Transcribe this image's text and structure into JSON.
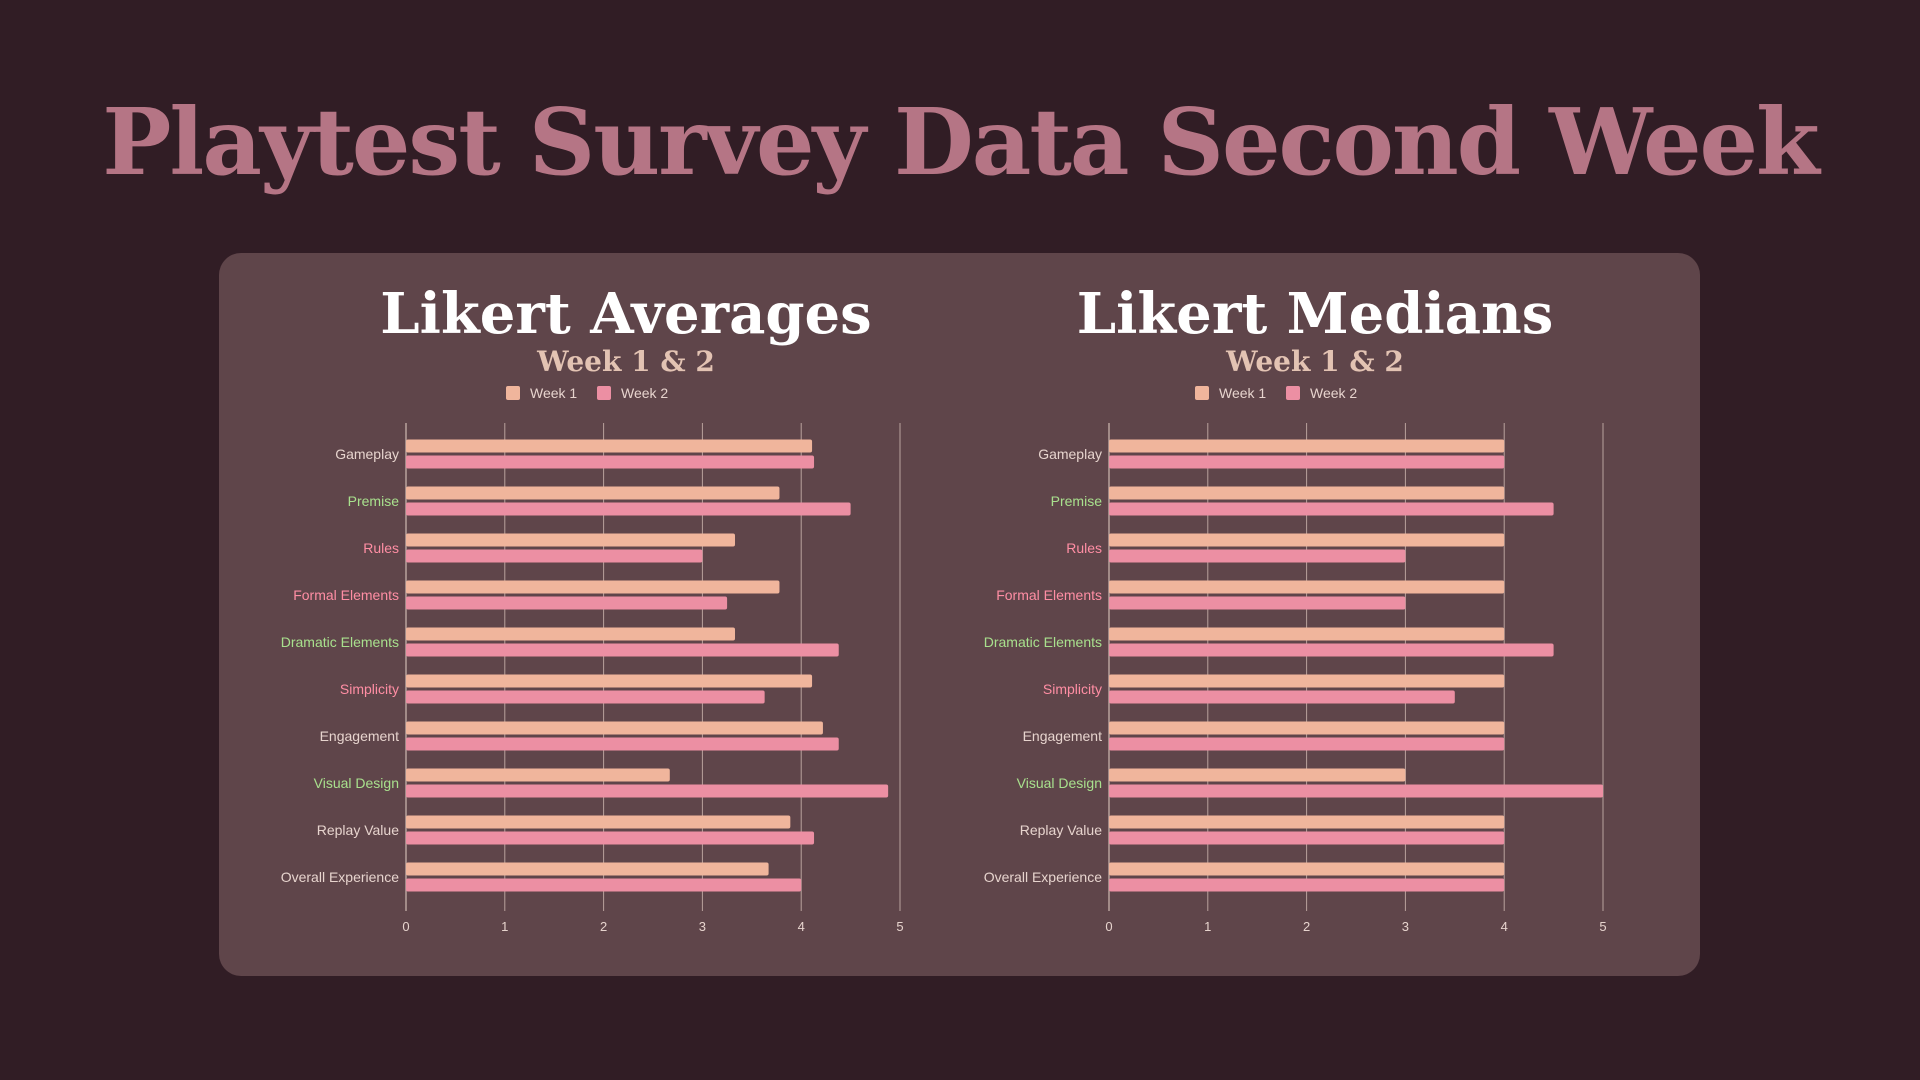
{
  "page": {
    "title": "Playtest Survey Data Second Week"
  },
  "colors": {
    "background": "#311d25",
    "panel": "#5f454a",
    "title": "#b57585",
    "week1": "#f0b59c",
    "week2": "#ec8fa3",
    "grid": "#c9b3ac",
    "label_default": "#e7d4ce",
    "label_green": "#a8e08d",
    "label_pink": "#ff8ea4"
  },
  "chart_data": [
    {
      "type": "bar",
      "orientation": "horizontal",
      "title": "Likert Averages",
      "subtitle": "Week 1 & 2",
      "categories": [
        "Gameplay",
        "Premise",
        "Rules",
        "Formal Elements",
        "Dramatic Elements",
        "Simplicity",
        "Engagement",
        "Visual Design",
        "Replay Value",
        "Overall Experience"
      ],
      "category_colors": [
        "default",
        "green",
        "pink",
        "pink",
        "green",
        "pink",
        "default",
        "green",
        "default",
        "default"
      ],
      "series": [
        {
          "name": "Week 1",
          "values": [
            4.11,
            3.78,
            3.33,
            3.78,
            3.33,
            4.11,
            4.22,
            2.67,
            3.89,
            3.67
          ]
        },
        {
          "name": "Week 2",
          "values": [
            4.13,
            4.5,
            3.0,
            3.25,
            4.38,
            3.63,
            4.38,
            4.88,
            4.13,
            4.0
          ]
        }
      ],
      "xlim": [
        0,
        5
      ],
      "xticks": [
        "0",
        "1",
        "2",
        "3",
        "4",
        "5"
      ],
      "grid": true,
      "legend": "top"
    },
    {
      "type": "bar",
      "orientation": "horizontal",
      "title": "Likert Medians",
      "subtitle": "Week 1 & 2",
      "categories": [
        "Gameplay",
        "Premise",
        "Rules",
        "Formal Elements",
        "Dramatic Elements",
        "Simplicity",
        "Engagement",
        "Visual Design",
        "Replay Value",
        "Overall Experience"
      ],
      "category_colors": [
        "default",
        "green",
        "pink",
        "pink",
        "green",
        "pink",
        "default",
        "green",
        "default",
        "default"
      ],
      "series": [
        {
          "name": "Week 1",
          "values": [
            4,
            4,
            4,
            4,
            4,
            4,
            4,
            3,
            4,
            4
          ]
        },
        {
          "name": "Week 2",
          "values": [
            4,
            4.5,
            3,
            3,
            4.5,
            3.5,
            4,
            5,
            4,
            4
          ]
        }
      ],
      "xlim": [
        0,
        5
      ],
      "xticks": [
        "0",
        "1",
        "2",
        "3",
        "4",
        "5"
      ],
      "grid": true,
      "legend": "top"
    }
  ]
}
